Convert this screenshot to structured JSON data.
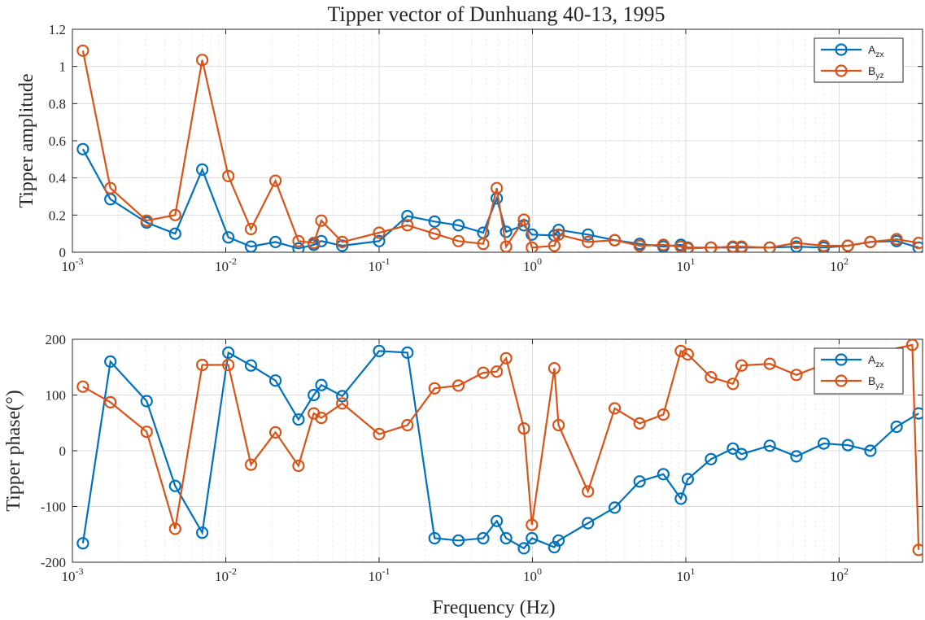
{
  "figure": {
    "xlabel": "Frequency (Hz)"
  },
  "chart_data": [
    {
      "type": "line",
      "title": "Tipper vector of Dunhuang 40-13, 1995",
      "ylabel": "Tipper amplitude",
      "xscale": "log",
      "xlim": [
        0.001,
        350
      ],
      "ylim": [
        0,
        1.2
      ],
      "yticks": [
        0,
        0.2,
        0.4,
        0.6,
        0.8,
        1,
        1.2
      ],
      "ytick_labels": [
        "0",
        "0.2",
        "0.4",
        "0.6",
        "0.8",
        "1",
        "1.2"
      ],
      "grid": true,
      "legend": "top-right",
      "series": [
        {
          "name": "A_zx",
          "label_main": "A",
          "label_sub": "zx",
          "color": "#0072BD",
          "x": [
            0.00117,
            0.00177,
            0.00305,
            0.00468,
            0.00703,
            0.0104,
            0.0146,
            0.0211,
            0.0298,
            0.0375,
            0.042,
            0.0575,
            0.1,
            0.153,
            0.23,
            0.329,
            0.478,
            0.585,
            0.673,
            0.88,
            0.992,
            1.39,
            1.48,
            2.3,
            3.44,
            5.0,
            7.14,
            9.29,
            10.3,
            14.6,
            20.3,
            23.1,
            35.3,
            52.6,
            79.4,
            114,
            160,
            237,
            330
          ],
          "y": [
            0.555,
            0.285,
            0.16,
            0.1,
            0.445,
            0.08,
            0.03,
            0.055,
            0.02,
            0.04,
            0.06,
            0.035,
            0.06,
            0.195,
            0.165,
            0.145,
            0.105,
            0.29,
            0.11,
            0.145,
            0.095,
            0.09,
            0.12,
            0.095,
            0.065,
            0.045,
            0.03,
            0.04,
            0.025,
            0.025,
            0.025,
            0.025,
            0.025,
            0.03,
            0.025,
            0.035,
            0.055,
            0.06,
            0.025
          ]
        },
        {
          "name": "B_yz",
          "label_main": "B",
          "label_sub": "yz",
          "color": "#D95319",
          "x": [
            0.00117,
            0.00177,
            0.00305,
            0.00468,
            0.00703,
            0.0104,
            0.0146,
            0.0211,
            0.0298,
            0.0375,
            0.042,
            0.0575,
            0.1,
            0.153,
            0.23,
            0.329,
            0.478,
            0.585,
            0.673,
            0.88,
            0.992,
            1.39,
            1.48,
            2.3,
            3.44,
            5.0,
            7.14,
            9.29,
            10.3,
            14.6,
            20.3,
            23.1,
            35.3,
            52.6,
            79.4,
            114,
            160,
            237,
            330
          ],
          "y": [
            1.085,
            0.345,
            0.17,
            0.2,
            1.035,
            0.41,
            0.125,
            0.385,
            0.06,
            0.05,
            0.17,
            0.055,
            0.105,
            0.145,
            0.1,
            0.06,
            0.045,
            0.345,
            0.03,
            0.175,
            0.025,
            0.035,
            0.095,
            0.055,
            0.065,
            0.035,
            0.04,
            0.03,
            0.02,
            0.025,
            0.03,
            0.03,
            0.025,
            0.05,
            0.035,
            0.035,
            0.055,
            0.07,
            0.05
          ]
        }
      ]
    },
    {
      "type": "line",
      "ylabel": "Tipper  phase(°)",
      "xscale": "log",
      "xlim": [
        0.001,
        350
      ],
      "ylim": [
        -200,
        200
      ],
      "yticks": [
        -200,
        -100,
        0,
        100,
        200
      ],
      "ytick_labels": [
        "-200",
        "-100",
        "0",
        "100",
        "200"
      ],
      "grid": true,
      "legend": "top-right",
      "series": [
        {
          "name": "A_zx",
          "label_main": "A",
          "label_sub": "zx",
          "color": "#0072BD",
          "x": [
            0.00117,
            0.00177,
            0.00305,
            0.00468,
            0.00703,
            0.0104,
            0.0146,
            0.0211,
            0.0298,
            0.0375,
            0.042,
            0.0575,
            0.1,
            0.153,
            0.23,
            0.329,
            0.478,
            0.585,
            0.673,
            0.88,
            0.992,
            1.39,
            1.48,
            2.3,
            3.44,
            5.0,
            7.14,
            9.29,
            10.3,
            14.6,
            20.3,
            23.1,
            35.3,
            52.6,
            79.4,
            114,
            160,
            237,
            330
          ],
          "y": [
            -166,
            160,
            89,
            -63,
            -147,
            176,
            153,
            126,
            56,
            100,
            118,
            98,
            179,
            176,
            -157,
            -161,
            -157,
            -126,
            -157,
            -175,
            -157,
            -173,
            -161,
            -130,
            -102,
            -55,
            -42,
            -86,
            -51,
            -15,
            4,
            -6,
            9,
            -10,
            13,
            10,
            0,
            43,
            67
          ]
        },
        {
          "name": "B_yz",
          "label_main": "B",
          "label_sub": "yz",
          "color": "#D95319",
          "x": [
            0.00117,
            0.00177,
            0.00305,
            0.00468,
            0.00703,
            0.0104,
            0.0146,
            0.0211,
            0.0298,
            0.0375,
            0.042,
            0.0575,
            0.1,
            0.153,
            0.23,
            0.329,
            0.478,
            0.585,
            0.673,
            0.88,
            0.992,
            1.39,
            1.48,
            2.3,
            3.44,
            5.0,
            7.14,
            9.29,
            10.3,
            14.6,
            20.3,
            23.1,
            35.3,
            52.6,
            79.4,
            300,
            330
          ],
          "y": [
            115,
            87,
            34,
            -140,
            154,
            154,
            -25,
            33,
            -27,
            67,
            59,
            85,
            30,
            46,
            112,
            117,
            140,
            142,
            166,
            40,
            -133,
            148,
            46,
            -73,
            76,
            49,
            65,
            179,
            173,
            132,
            120,
            153,
            156,
            136,
            155,
            190,
            -178
          ]
        }
      ]
    }
  ]
}
